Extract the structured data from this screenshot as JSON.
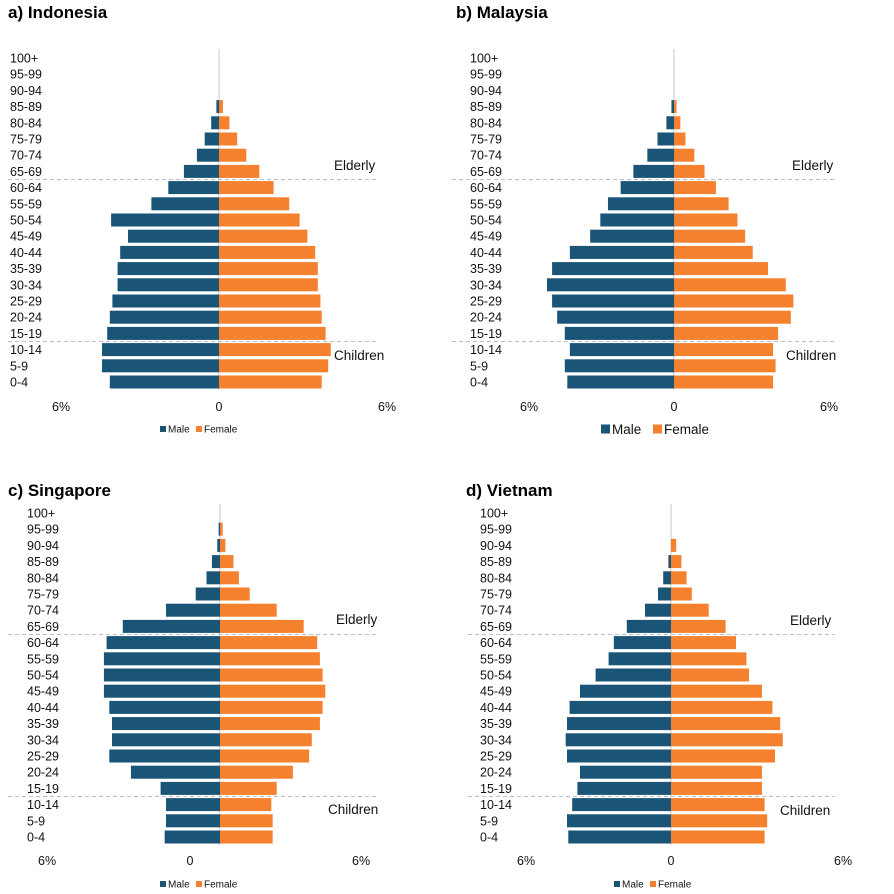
{
  "colors": {
    "male": "#1a5477",
    "female": "#f5802e",
    "divider": "#b9bfc8",
    "axis": "#c8c8c8",
    "text": "#111111"
  },
  "chart_data": [
    {
      "type": "bar",
      "id": "indonesia",
      "title": "a) Indonesia",
      "age_groups": [
        "0-4",
        "5-9",
        "10-14",
        "15-19",
        "20-24",
        "25-29",
        "30-34",
        "35-39",
        "40-44",
        "45-49",
        "50-54",
        "55-59",
        "60-64",
        "65-69",
        "70-74",
        "75-79",
        "80-84",
        "85-89",
        "90-94",
        "95-99",
        "100+"
      ],
      "series": [
        {
          "name": "Male",
          "values": [
            4.2,
            4.5,
            4.5,
            4.3,
            4.2,
            4.1,
            3.9,
            3.9,
            3.8,
            3.5,
            4.15,
            2.6,
            1.95,
            1.35,
            0.85,
            0.55,
            0.3,
            0.1,
            0,
            0,
            0
          ]
        },
        {
          "name": "Female",
          "values": [
            3.95,
            4.2,
            4.3,
            4.1,
            3.95,
            3.9,
            3.8,
            3.8,
            3.7,
            3.4,
            3.1,
            2.7,
            2.1,
            1.55,
            1.05,
            0.7,
            0.4,
            0.15,
            0,
            0,
            0
          ]
        }
      ],
      "axis_labels": {
        "left": "6%",
        "center": "0",
        "right": "6%"
      },
      "xlim": [
        -6,
        6
      ],
      "annotations": {
        "elderly": "Elderly",
        "children": "Children"
      },
      "legend": {
        "male": "Male",
        "female": "Female"
      }
    },
    {
      "type": "bar",
      "id": "malaysia",
      "title": "b)  Malaysia",
      "age_groups": [
        "0-4",
        "5-9",
        "10-14",
        "15-19",
        "20-24",
        "25-29",
        "30-34",
        "35-39",
        "40-44",
        "45-49",
        "50-54",
        "55-59",
        "60-64",
        "65-69",
        "70-74",
        "75-79",
        "80-84",
        "85-89",
        "90-94",
        "95-99",
        "100+"
      ],
      "series": [
        {
          "name": "Male",
          "values": [
            4.2,
            4.3,
            4.1,
            4.3,
            4.6,
            4.8,
            5.0,
            4.8,
            4.1,
            3.3,
            2.9,
            2.6,
            2.1,
            1.6,
            1.05,
            0.65,
            0.3,
            0.1,
            0,
            0,
            0
          ]
        },
        {
          "name": "Female",
          "values": [
            3.9,
            4.0,
            3.9,
            4.1,
            4.6,
            4.7,
            4.4,
            3.7,
            3.1,
            2.8,
            2.5,
            2.15,
            1.65,
            1.2,
            0.8,
            0.45,
            0.25,
            0.1,
            0,
            0,
            0
          ]
        }
      ],
      "axis_labels": {
        "left": "6%",
        "center": "0",
        "right": "6%"
      },
      "xlim": [
        -6,
        6
      ],
      "annotations": {
        "elderly": "Elderly",
        "children": "Children"
      },
      "legend": {
        "male": "Male",
        "female": "Female"
      }
    },
    {
      "type": "bar",
      "id": "singapore",
      "title": "c) Singapore",
      "age_groups": [
        "0-4",
        "5-9",
        "10-14",
        "15-19",
        "20-24",
        "25-29",
        "30-34",
        "35-39",
        "40-44",
        "45-49",
        "50-54",
        "55-59",
        "60-64",
        "65-69",
        "70-74",
        "75-79",
        "80-84",
        "85-89",
        "90-94",
        "95-99",
        "100+"
      ],
      "series": [
        {
          "name": "Male",
          "values": [
            2.05,
            2.0,
            2.0,
            2.2,
            3.3,
            4.1,
            4.0,
            4.0,
            4.1,
            4.3,
            4.3,
            4.3,
            4.2,
            3.6,
            2.0,
            0.9,
            0.5,
            0.3,
            0.1,
            0.05,
            0
          ]
        },
        {
          "name": "Female",
          "values": [
            1.95,
            1.95,
            1.9,
            2.1,
            2.7,
            3.3,
            3.4,
            3.7,
            3.8,
            3.9,
            3.8,
            3.7,
            3.6,
            3.1,
            2.1,
            1.1,
            0.7,
            0.5,
            0.2,
            0.1,
            0
          ]
        }
      ],
      "axis_labels": {
        "left": "6%",
        "center": "0",
        "right": "6%"
      },
      "xlim": [
        -6,
        6
      ],
      "annotations": {
        "elderly": "Elderly",
        "children": "Children"
      },
      "legend": {
        "male": "Male",
        "female": "Female"
      }
    },
    {
      "type": "bar",
      "id": "vietnam",
      "title": "d) Vietnam",
      "age_groups": [
        "0-4",
        "5-9",
        "10-14",
        "15-19",
        "20-24",
        "25-29",
        "30-34",
        "35-39",
        "40-44",
        "45-49",
        "50-54",
        "55-59",
        "60-64",
        "65-69",
        "70-74",
        "75-79",
        "80-84",
        "85-89",
        "90-94",
        "95-99",
        "100+"
      ],
      "series": [
        {
          "name": "Male",
          "values": [
            3.95,
            4.0,
            3.8,
            3.6,
            3.5,
            4.0,
            4.05,
            4.0,
            3.9,
            3.5,
            2.9,
            2.4,
            2.2,
            1.7,
            1.0,
            0.5,
            0.3,
            0.1,
            0,
            0,
            0
          ]
        },
        {
          "name": "Female",
          "values": [
            3.6,
            3.7,
            3.6,
            3.5,
            3.5,
            4.0,
            4.3,
            4.2,
            3.9,
            3.5,
            3.0,
            2.9,
            2.5,
            2.1,
            1.45,
            0.8,
            0.6,
            0.4,
            0.2,
            0,
            0
          ]
        }
      ],
      "axis_labels": {
        "left": "6%",
        "center": "0",
        "right": "6%"
      },
      "xlim": [
        -6,
        6
      ],
      "annotations": {
        "elderly": "Elderly",
        "children": "Children"
      },
      "legend": {
        "male": "Male",
        "female": "Female"
      }
    }
  ]
}
